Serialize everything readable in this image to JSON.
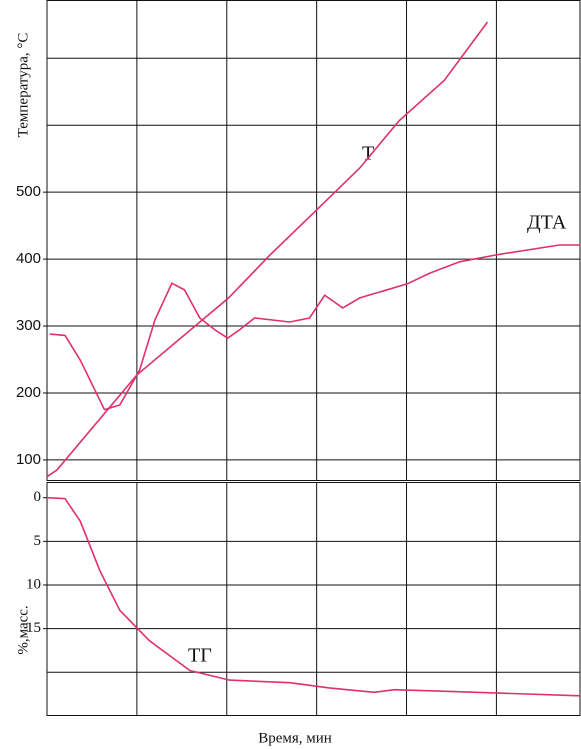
{
  "chart_data": [
    {
      "type": "line",
      "y_label": "Температура, °С",
      "xlim": [
        0,
        5.93
      ],
      "xgrid": [
        1,
        2,
        3,
        4,
        5
      ],
      "ylim": [
        70,
        787
      ],
      "yticks": [
        100,
        200,
        300,
        400,
        500
      ],
      "ygrid": [
        100,
        200,
        300,
        400,
        500,
        600,
        700
      ],
      "grid": true,
      "annotations": [
        "Т",
        "ДТА"
      ],
      "series": [
        {
          "name": "Т",
          "color": "#e0306a",
          "x": [
            0,
            0.11,
            1.0,
            2.02,
            2.48,
            3.02,
            3.48,
            3.92,
            4.42,
            4.9
          ],
          "values": [
            75,
            85,
            227,
            342,
            406,
            476,
            536,
            607,
            667,
            754
          ]
        },
        {
          "name": "ДТА",
          "color": "#e0306a",
          "x": [
            0.03,
            0.2,
            0.37,
            0.64,
            0.81,
            1.03,
            1.2,
            1.39,
            1.53,
            1.7,
            1.87,
            2.01,
            2.14,
            2.31,
            2.7,
            2.92,
            3.09,
            3.29,
            3.48,
            4.01,
            4.26,
            4.59,
            5.03,
            5.7,
            5.93
          ],
          "values": [
            288,
            286,
            249,
            175,
            182,
            234,
            309,
            364,
            354,
            312,
            294,
            282,
            294,
            312,
            306,
            312,
            346,
            327,
            342,
            363,
            379,
            396,
            407,
            421,
            421
          ]
        }
      ]
    },
    {
      "type": "line",
      "y_label": "%,масс.",
      "x_label": "Время, мин",
      "xlim": [
        0,
        5.93
      ],
      "xgrid": [
        1,
        2,
        3,
        4,
        5
      ],
      "ylim": [
        24.9,
        -1.8
      ],
      "yticks": [
        0,
        5,
        10,
        15
      ],
      "ygrid": [
        5,
        10,
        15,
        20
      ],
      "grid": true,
      "annotations": [
        "ТГ"
      ],
      "series": [
        {
          "name": "ТГ",
          "color": "#e0306a",
          "x": [
            0,
            0.2,
            0.37,
            0.59,
            0.81,
            1.14,
            1.59,
            2.03,
            2.7,
            3.14,
            3.64,
            3.87,
            4.48,
            5.93
          ],
          "values": [
            0,
            0.1,
            2.7,
            8.4,
            12.9,
            16.4,
            19.8,
            20.9,
            21.2,
            21.8,
            22.3,
            22,
            22.2,
            22.7
          ]
        }
      ]
    }
  ]
}
